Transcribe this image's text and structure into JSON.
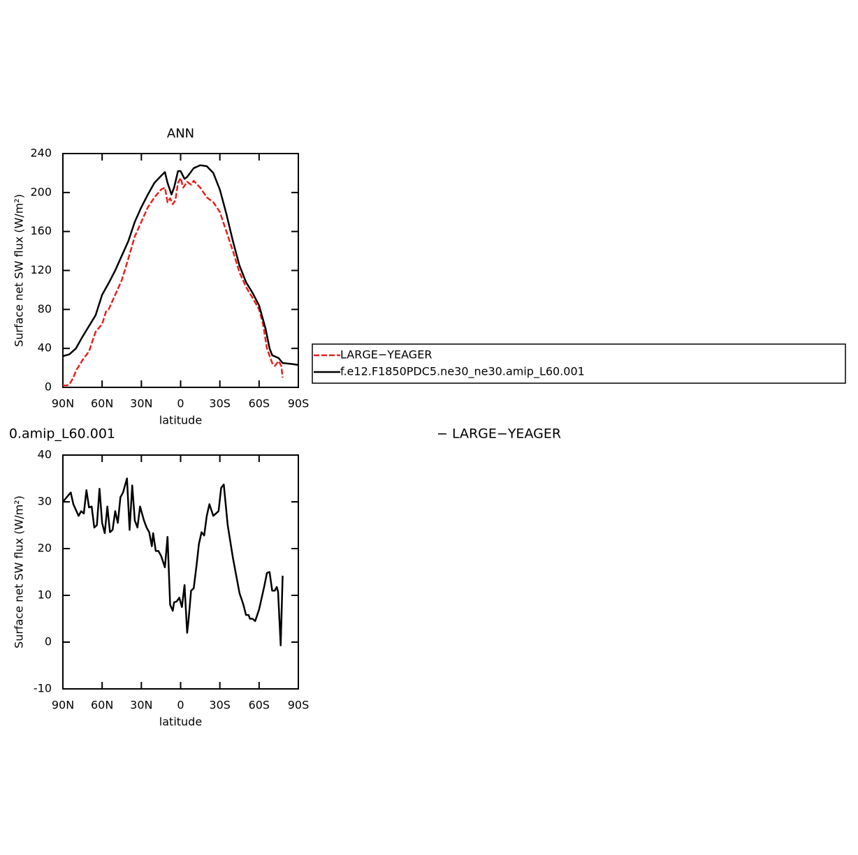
{
  "chart_data": [
    {
      "type": "line",
      "title": "ANN",
      "xlabel": "latitude",
      "ylabel": "Surface net SW flux (W/m²)",
      "xlim": [
        90,
        -90
      ],
      "xticks": [
        {
          "value": 90,
          "label": "90N"
        },
        {
          "value": 60,
          "label": "60N"
        },
        {
          "value": 30,
          "label": "30N"
        },
        0,
        {
          "value": -30,
          "label": "30S"
        },
        {
          "value": -60,
          "label": "60S"
        },
        {
          "value": -90,
          "label": "90S"
        }
      ],
      "ylim": [
        0,
        240
      ],
      "yticks": [
        0,
        40,
        80,
        120,
        160,
        200,
        240
      ],
      "legend": "right",
      "series": [
        {
          "name": "LARGE−YEAGER",
          "color": "#e8201c",
          "dashed": true,
          "x": [
            90,
            87,
            85,
            82,
            80,
            75,
            70,
            65,
            60,
            57,
            55,
            50,
            45,
            40,
            35,
            30,
            25,
            20,
            15,
            12,
            10,
            8,
            6,
            4,
            2,
            0,
            -2,
            -5,
            -8,
            -10,
            -15,
            -20,
            -25,
            -30,
            -35,
            -40,
            -45,
            -50,
            -55,
            -60,
            -63,
            -66,
            -70,
            -72,
            -75,
            -77,
            -78
          ],
          "values": [
            2,
            2,
            3,
            10,
            17,
            28,
            37,
            57,
            65,
            78,
            80,
            95,
            110,
            132,
            155,
            170,
            185,
            195,
            203,
            205,
            190,
            194,
            188,
            192,
            210,
            215,
            205,
            211,
            208,
            212,
            205,
            195,
            190,
            180,
            160,
            140,
            118,
            103,
            92,
            80,
            65,
            40,
            25,
            22,
            27,
            22,
            10
          ]
        },
        {
          "name": "f.e12.F1850PDC5.ne30_ne30.amip_L60.001",
          "color": "#000000",
          "dashed": false,
          "x": [
            90,
            85,
            80,
            75,
            70,
            65,
            60,
            55,
            50,
            45,
            40,
            35,
            30,
            25,
            20,
            15,
            12,
            10,
            7,
            5,
            2,
            0,
            -3,
            -5,
            -10,
            -15,
            -20,
            -25,
            -30,
            -35,
            -40,
            -45,
            -50,
            -55,
            -60,
            -65,
            -68,
            -70,
            -75,
            -78,
            -85,
            -90
          ],
          "values": [
            32,
            34,
            40,
            52,
            63,
            74,
            95,
            107,
            120,
            135,
            150,
            170,
            185,
            198,
            210,
            217,
            221,
            210,
            198,
            205,
            222,
            222,
            214,
            216,
            225,
            228,
            227,
            220,
            203,
            178,
            150,
            125,
            108,
            97,
            84,
            60,
            40,
            33,
            30,
            25,
            24,
            23
          ]
        }
      ]
    },
    {
      "type": "line",
      "title_left": "0.amip_L60.001",
      "title_right": "− LARGE−YEAGER",
      "xlabel": "latitude",
      "ylabel": "Surface net SW flux (W/m²)",
      "xlim": [
        90,
        -90
      ],
      "xticks": [
        {
          "value": 90,
          "label": "90N"
        },
        {
          "value": 60,
          "label": "60N"
        },
        {
          "value": 30,
          "label": "30N"
        },
        0,
        {
          "value": -30,
          "label": "30S"
        },
        {
          "value": -60,
          "label": "60S"
        },
        {
          "value": -90,
          "label": "90S"
        }
      ],
      "ylim": [
        -10,
        40
      ],
      "yticks": [
        -10,
        0,
        10,
        20,
        30,
        40
      ],
      "series": [
        {
          "color": "#000000",
          "dashed": false,
          "x": [
            90,
            87,
            84,
            82,
            78,
            76,
            74,
            72,
            70,
            68,
            66,
            64,
            62,
            60,
            58,
            56,
            54,
            52,
            50,
            48,
            46,
            44,
            41,
            39,
            37,
            35,
            33,
            31,
            28,
            26,
            24,
            22,
            21,
            19,
            17,
            15,
            12,
            10,
            8,
            6,
            5,
            3,
            1,
            -1,
            -3,
            -5,
            -6,
            -8,
            -10,
            -12,
            -14,
            -16,
            -18,
            -20,
            -22,
            -25,
            -29,
            -31,
            -33,
            -36,
            -40,
            -45,
            -48,
            -50,
            -52,
            -53,
            -55,
            -57,
            -60,
            -64,
            -66,
            -68,
            -70,
            -72,
            -73.5,
            -74.5,
            -76.5,
            -78
          ],
          "values": [
            30,
            31,
            32,
            29.5,
            27,
            28,
            27.5,
            32.5,
            28.8,
            29,
            24.5,
            25,
            32.8,
            25.5,
            23.3,
            29,
            23.5,
            24,
            28,
            25.5,
            31,
            32,
            35,
            24,
            33.5,
            26,
            24.5,
            29,
            26,
            24.5,
            23.5,
            20.5,
            23.3,
            19.5,
            19.5,
            18.5,
            16,
            22.5,
            8,
            6.7,
            8.5,
            8.7,
            9.5,
            7.5,
            12.2,
            2,
            4.5,
            11,
            11.5,
            16,
            21,
            23.5,
            22.8,
            27,
            29.5,
            27,
            28,
            33,
            33.7,
            25,
            18,
            10.5,
            8,
            5.8,
            5.8,
            5,
            5,
            4.5,
            7,
            12,
            14.8,
            15,
            11,
            11,
            11.8,
            10.8,
            -0.7,
            14.2
          ]
        }
      ]
    }
  ]
}
